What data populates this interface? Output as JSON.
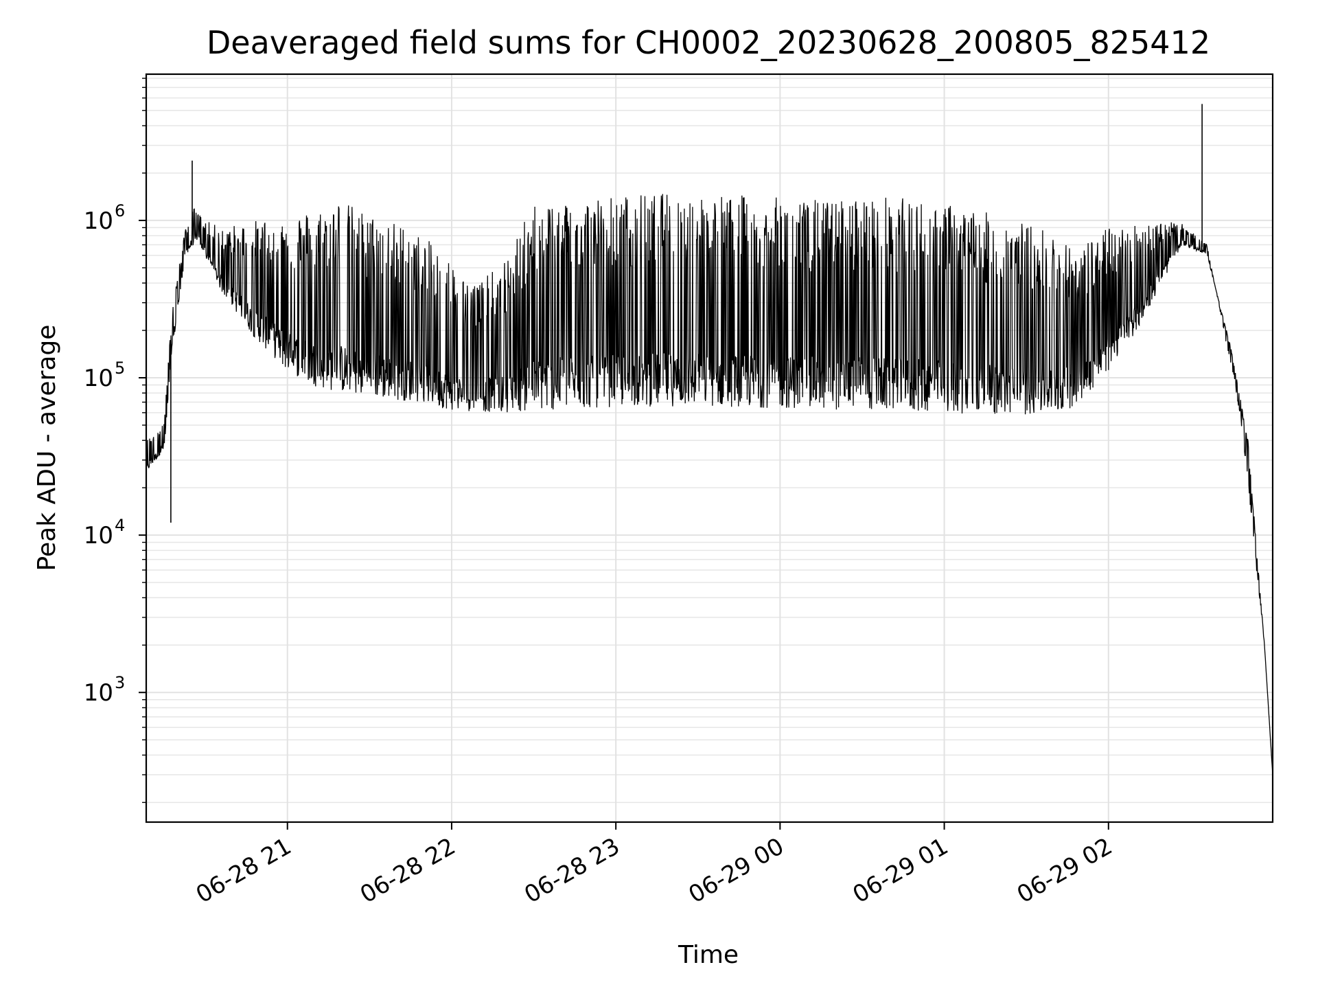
{
  "chart_data": {
    "type": "line",
    "title": "Deaveraged field sums for CH0002_20230628_200805_825412",
    "xlabel": "Time",
    "ylabel": "Peak ADU - average",
    "yscale": "log",
    "x_units": "hours since 06-28 00:00",
    "xlim": [
      20.14,
      27.0
    ],
    "ylim": [
      150,
      8500000
    ],
    "grid": true,
    "x_ticks": [
      {
        "value": 21,
        "label": "06-28 21"
      },
      {
        "value": 22,
        "label": "06-28 22"
      },
      {
        "value": 23,
        "label": "06-28 23"
      },
      {
        "value": 24,
        "label": "06-29 00"
      },
      {
        "value": 25,
        "label": "06-29 01"
      },
      {
        "value": 26,
        "label": "06-29 02"
      }
    ],
    "y_ticks": [
      {
        "value": 1000,
        "base": "10",
        "exp": "3"
      },
      {
        "value": 10000,
        "base": "10",
        "exp": "4"
      },
      {
        "value": 100000,
        "base": "10",
        "exp": "5"
      },
      {
        "value": 1000000,
        "base": "10",
        "exp": "6"
      }
    ],
    "series": [
      {
        "name": "Deaveraged field sum",
        "color": "#000000",
        "envelope_upper": [
          [
            20.14,
            40000
          ],
          [
            20.25,
            55000
          ],
          [
            20.3,
            300000
          ],
          [
            20.38,
            900000
          ],
          [
            20.43,
            1200000
          ],
          [
            20.5,
            1000000
          ],
          [
            20.6,
            900000
          ],
          [
            20.8,
            1000000
          ],
          [
            21.0,
            1100000
          ],
          [
            21.2,
            1200000
          ],
          [
            21.3,
            1400000
          ],
          [
            21.5,
            1100000
          ],
          [
            21.7,
            950000
          ],
          [
            21.9,
            700000
          ],
          [
            22.0,
            550000
          ],
          [
            22.1,
            400000
          ],
          [
            22.3,
            500000
          ],
          [
            22.5,
            1300000
          ],
          [
            22.7,
            1400000
          ],
          [
            23.0,
            1450000
          ],
          [
            23.3,
            1500000
          ],
          [
            23.5,
            1500000
          ],
          [
            23.8,
            1450000
          ],
          [
            24.0,
            1400000
          ],
          [
            24.3,
            1350000
          ],
          [
            24.6,
            1450000
          ],
          [
            25.0,
            1300000
          ],
          [
            25.3,
            1100000
          ],
          [
            25.6,
            900000
          ],
          [
            25.8,
            700000
          ],
          [
            26.0,
            900000
          ],
          [
            26.3,
            1000000
          ],
          [
            26.45,
            950000
          ],
          [
            26.6,
            700000
          ],
          [
            26.8,
            60000
          ],
          [
            26.95,
            2000
          ],
          [
            27.0,
            300
          ]
        ],
        "envelope_lower": [
          [
            20.14,
            25000
          ],
          [
            20.25,
            35000
          ],
          [
            20.3,
            150000
          ],
          [
            20.38,
            600000
          ],
          [
            20.45,
            750000
          ],
          [
            20.6,
            350000
          ],
          [
            20.8,
            180000
          ],
          [
            21.0,
            110000
          ],
          [
            21.2,
            85000
          ],
          [
            21.5,
            75000
          ],
          [
            21.8,
            70000
          ],
          [
            22.0,
            62000
          ],
          [
            22.3,
            60000
          ],
          [
            22.6,
            62000
          ],
          [
            23.0,
            65000
          ],
          [
            23.5,
            66000
          ],
          [
            24.0,
            64000
          ],
          [
            24.5,
            62000
          ],
          [
            25.0,
            60000
          ],
          [
            25.3,
            58000
          ],
          [
            25.6,
            58000
          ],
          [
            25.8,
            65000
          ],
          [
            26.0,
            110000
          ],
          [
            26.2,
            220000
          ],
          [
            26.35,
            450000
          ],
          [
            26.45,
            700000
          ],
          [
            26.6,
            600000
          ],
          [
            26.75,
            150000
          ],
          [
            26.85,
            40000
          ],
          [
            26.95,
            2000
          ],
          [
            27.0,
            300
          ]
        ],
        "spikes": [
          {
            "x": 20.42,
            "y": 2400000
          },
          {
            "x": 26.57,
            "y": 5500000
          },
          {
            "x": 20.29,
            "y": 12000
          }
        ]
      }
    ]
  }
}
